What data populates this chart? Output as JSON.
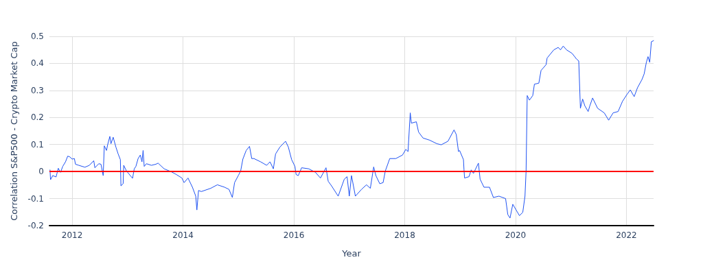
{
  "chart_data": {
    "type": "line",
    "xlabel": "Year",
    "ylabel": "Correlation S&P500 - Crypto Market Cap",
    "x": [
      2011.6,
      2011.61,
      2011.65,
      2011.71,
      2011.75,
      2011.79,
      2011.83,
      2011.88,
      2011.92,
      2011.96,
      2012.0,
      2012.04,
      2012.06,
      2012.12,
      2012.23,
      2012.31,
      2012.39,
      2012.41,
      2012.48,
      2012.52,
      2012.56,
      2012.58,
      2012.62,
      2012.64,
      2012.68,
      2012.7,
      2012.74,
      2012.79,
      2012.83,
      2012.87,
      2012.88,
      2012.92,
      2012.93,
      2012.98,
      2013.09,
      2013.12,
      2013.15,
      2013.19,
      2013.23,
      2013.26,
      2013.28,
      2013.3,
      2013.34,
      2013.43,
      2013.51,
      2013.55,
      2013.66,
      2013.78,
      2013.88,
      2013.98,
      2014.02,
      2014.09,
      2014.17,
      2014.23,
      2014.25,
      2014.28,
      2014.33,
      2014.5,
      2014.62,
      2014.75,
      2014.83,
      2014.89,
      2014.93,
      2015.0,
      2015.04,
      2015.08,
      2015.14,
      2015.2,
      2015.24,
      2015.28,
      2015.4,
      2015.51,
      2015.57,
      2015.63,
      2015.67,
      2015.75,
      2015.85,
      2015.9,
      2015.96,
      2016.02,
      2016.04,
      2016.08,
      2016.14,
      2016.27,
      2016.39,
      2016.48,
      2016.58,
      2016.62,
      2016.68,
      2016.8,
      2016.91,
      2016.96,
      2017.0,
      2017.04,
      2017.11,
      2017.22,
      2017.31,
      2017.38,
      2017.44,
      2017.48,
      2017.55,
      2017.61,
      2017.65,
      2017.73,
      2017.84,
      2017.96,
      2018.02,
      2018.06,
      2018.1,
      2018.12,
      2018.21,
      2018.25,
      2018.33,
      2018.45,
      2018.58,
      2018.66,
      2018.78,
      2018.89,
      2018.93,
      2018.97,
      2018.99,
      2019.06,
      2019.07,
      2019.08,
      2019.16,
      2019.2,
      2019.24,
      2019.33,
      2019.36,
      2019.43,
      2019.53,
      2019.6,
      2019.7,
      2019.82,
      2019.86,
      2019.9,
      2019.95,
      2020.01,
      2020.07,
      2020.13,
      2020.17,
      2020.19,
      2020.21,
      2020.25,
      2020.31,
      2020.34,
      2020.42,
      2020.46,
      2020.55,
      2020.57,
      2020.69,
      2020.77,
      2020.81,
      2020.86,
      2020.92,
      2021.02,
      2021.1,
      2021.14,
      2021.17,
      2021.21,
      2021.25,
      2021.31,
      2021.34,
      2021.39,
      2021.48,
      2021.6,
      2021.68,
      2021.76,
      2021.85,
      2021.93,
      2022.01,
      2022.07,
      2022.14,
      2022.2,
      2022.28,
      2022.32,
      2022.36,
      2022.39,
      2022.42,
      2022.45,
      2022.49
    ],
    "series": [
      {
        "color": "#1f52f2",
        "values": [
          0.006,
          -0.03,
          -0.015,
          -0.02,
          0.012,
          -0.003,
          0.019,
          0.036,
          0.057,
          0.054,
          0.046,
          0.048,
          0.027,
          0.023,
          0.016,
          0.023,
          0.04,
          0.014,
          0.029,
          0.027,
          -0.015,
          0.095,
          0.078,
          0.099,
          0.13,
          0.103,
          0.127,
          0.09,
          0.065,
          0.044,
          -0.053,
          -0.045,
          0.023,
          0.002,
          -0.025,
          0.01,
          0.019,
          0.048,
          0.061,
          0.036,
          0.078,
          0.019,
          0.029,
          0.023,
          0.027,
          0.031,
          0.01,
          0.0,
          -0.011,
          -0.024,
          -0.041,
          -0.024,
          -0.058,
          -0.091,
          -0.142,
          -0.07,
          -0.074,
          -0.062,
          -0.049,
          -0.058,
          -0.066,
          -0.096,
          -0.041,
          -0.014,
          0.002,
          0.046,
          0.078,
          0.093,
          0.048,
          0.048,
          0.036,
          0.023,
          0.036,
          0.01,
          0.065,
          0.091,
          0.112,
          0.091,
          0.044,
          0.019,
          -0.011,
          -0.015,
          0.014,
          0.01,
          -0.003,
          -0.024,
          0.014,
          -0.036,
          -0.053,
          -0.091,
          -0.028,
          -0.019,
          -0.091,
          -0.015,
          -0.091,
          -0.066,
          -0.049,
          -0.062,
          0.017,
          -0.015,
          -0.045,
          -0.041,
          0.002,
          0.048,
          0.048,
          0.061,
          0.082,
          0.074,
          0.217,
          0.179,
          0.184,
          0.146,
          0.124,
          0.116,
          0.103,
          0.099,
          0.112,
          0.154,
          0.137,
          0.074,
          0.078,
          0.044,
          0.006,
          -0.024,
          -0.019,
          0.006,
          -0.007,
          0.031,
          -0.028,
          -0.058,
          -0.058,
          -0.096,
          -0.091,
          -0.1,
          -0.159,
          -0.172,
          -0.121,
          -0.142,
          -0.163,
          -0.151,
          -0.091,
          0.002,
          0.281,
          0.264,
          0.281,
          0.323,
          0.327,
          0.374,
          0.395,
          0.42,
          0.45,
          0.459,
          0.45,
          0.464,
          0.45,
          0.437,
          0.416,
          0.409,
          0.234,
          0.268,
          0.243,
          0.222,
          0.243,
          0.272,
          0.234,
          0.217,
          0.19,
          0.217,
          0.222,
          0.26,
          0.285,
          0.302,
          0.277,
          0.31,
          0.34,
          0.361,
          0.404,
          0.425,
          0.404,
          0.48,
          0.484
        ]
      }
    ],
    "xlim": [
      2011.59,
      2022.49
    ],
    "xticks": [
      2012,
      2014,
      2016,
      2018,
      2020,
      2022
    ],
    "ylim": [
      -0.2,
      0.5
    ],
    "yticks": [
      -0.2,
      -0.1,
      0,
      0.1,
      0.2,
      0.3,
      0.4,
      0.5
    ],
    "ref_lines": [
      {
        "axis": "y",
        "value": 0,
        "color": "#ff0000"
      }
    ],
    "grid": true,
    "marker": "none",
    "line_style": "solid"
  }
}
